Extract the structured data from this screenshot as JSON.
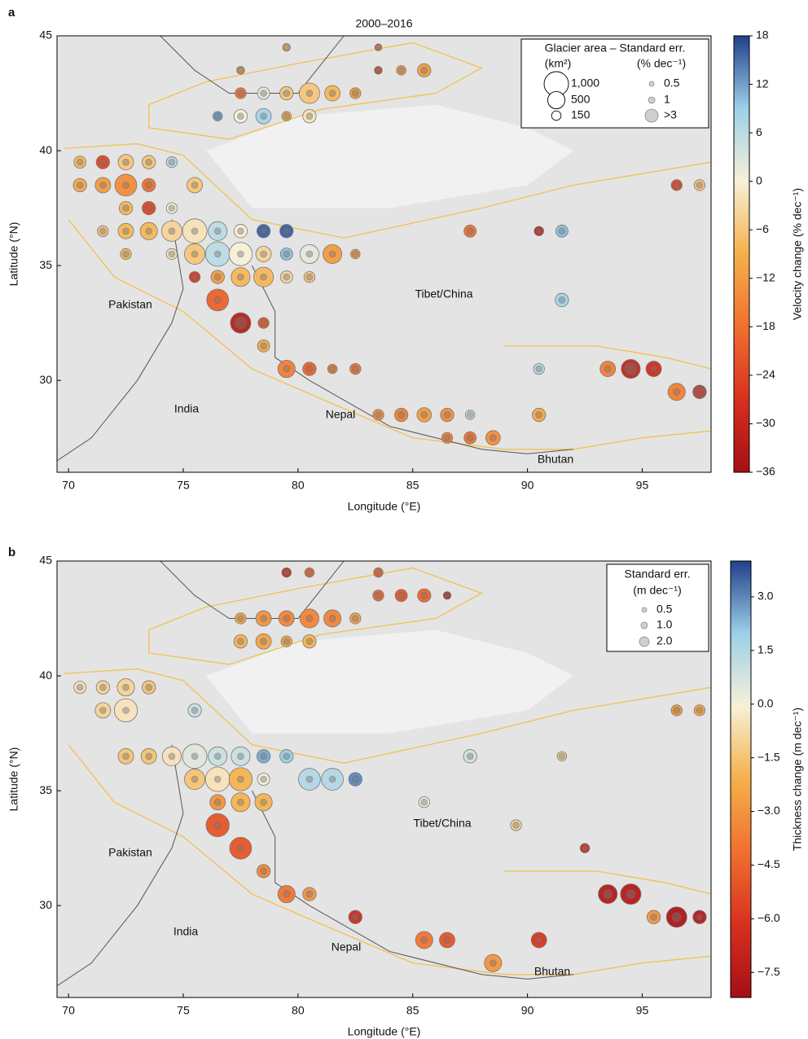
{
  "chart_data": [
    {
      "type": "bubble-map",
      "panel": "a",
      "title": "2000–2016",
      "xlabel": "Longitude (°E)",
      "ylabel": "Latitude (°N)",
      "xlim": [
        69.5,
        98
      ],
      "ylim": [
        26,
        45
      ],
      "xticks": [
        70,
        75,
        80,
        85,
        90,
        95
      ],
      "yticks": [
        30,
        35,
        40,
        45
      ],
      "annotations": [
        "Pakistan",
        "India",
        "Nepal",
        "Tibet/China",
        "Bhutan"
      ],
      "colormap": [
        "#a50f15",
        "#d7301f",
        "#f0702f",
        "#f5b04a",
        "#f7f0d8",
        "#9dd0e8",
        "#21408a"
      ],
      "colorbar": {
        "label": "Velocity change (% dec⁻¹)",
        "lim": [
          -36,
          18
        ],
        "ticks": [
          18,
          12,
          6,
          0,
          {
            "value": -6,
            "label": "−6"
          },
          {
            "value": -12,
            "label": "−12"
          },
          {
            "value": -18,
            "label": "−18"
          },
          {
            "value": -24,
            "label": "−24"
          },
          {
            "value": -30,
            "label": "−30"
          },
          {
            "value": -36,
            "label": "−36"
          }
        ]
      },
      "legend": {
        "title": "Glacier area – Standard err.",
        "size_unit": "(km²)",
        "error_unit": "(% dec⁻¹)",
        "sizes": [
          {
            "value": 1000,
            "label": "1,000"
          },
          500,
          150
        ],
        "errors": [
          0.5,
          1,
          {
            "value": 3,
            "label": ">3"
          }
        ]
      },
      "series": [
        {
          "x": [
            77.5,
            79.5,
            83.5,
            83.5,
            84.5,
            85.5,
            77.5,
            78.5,
            79.5,
            80.5,
            81.5,
            82.5,
            76.5,
            77.5,
            78.5,
            79.5,
            80.5,
            70.5,
            71.5,
            72.5,
            73.5,
            74.5,
            70.5,
            71.5,
            72.5,
            73.5,
            75.5,
            72.5,
            73.5,
            74.5,
            71.5,
            72.5,
            73.5,
            74.5,
            75.5,
            76.5,
            77.5,
            78.5,
            79.5,
            72.5,
            74.5,
            75.5,
            76.5,
            77.5,
            78.5,
            79.5,
            80.5,
            81.5,
            82.5,
            75.5,
            76.5,
            77.5,
            78.5,
            79.5,
            80.5,
            76.5,
            77.5,
            78.5,
            78.5,
            79.5,
            80.5,
            81.5,
            82.5,
            83.5,
            84.5,
            85.5,
            86.5,
            87.5,
            90.5,
            86.5,
            87.5,
            88.5,
            87.5,
            90.5,
            91.5,
            91.5,
            90.5,
            93.5,
            94.5,
            95.5,
            96.5,
            97.5,
            96.5,
            97.5
          ],
          "y": [
            43.5,
            44.5,
            44.5,
            43.5,
            43.5,
            43.5,
            42.5,
            42.5,
            42.5,
            42.5,
            42.5,
            42.5,
            41.5,
            41.5,
            41.5,
            41.5,
            41.5,
            39.5,
            39.5,
            39.5,
            39.5,
            39.5,
            38.5,
            38.5,
            38.5,
            38.5,
            38.5,
            37.5,
            37.5,
            37.5,
            36.5,
            36.5,
            36.5,
            36.5,
            36.5,
            36.5,
            36.5,
            36.5,
            36.5,
            35.5,
            35.5,
            35.5,
            35.5,
            35.5,
            35.5,
            35.5,
            35.5,
            35.5,
            35.5,
            34.5,
            34.5,
            34.5,
            34.5,
            34.5,
            34.5,
            33.5,
            32.5,
            32.5,
            31.5,
            30.5,
            30.5,
            30.5,
            30.5,
            28.5,
            28.5,
            28.5,
            28.5,
            28.5,
            28.5,
            27.5,
            27.5,
            27.5,
            36.5,
            36.5,
            36.5,
            33.5,
            30.5,
            30.5,
            30.5,
            30.5,
            29.5,
            29.5,
            38.5,
            38.5
          ],
          "values": [
            -12,
            -8,
            -18,
            -24,
            -12,
            -12,
            -18,
            2,
            -6,
            -6,
            -8,
            -12,
            12,
            0,
            8,
            -10,
            -2,
            -8,
            -24,
            -6,
            -6,
            6,
            -10,
            -12,
            -14,
            -18,
            -6,
            -8,
            -24,
            0,
            -6,
            -8,
            -8,
            -4,
            -2,
            6,
            0,
            16,
            16,
            -8,
            -2,
            -6,
            6,
            0,
            -4,
            10,
            2,
            -12,
            -12,
            -26,
            -12,
            -8,
            -8,
            -4,
            -6,
            -20,
            -32,
            -22,
            -10,
            -16,
            -20,
            -16,
            -18,
            -14,
            -16,
            -12,
            -14,
            4,
            -10,
            -16,
            -18,
            -14,
            -18,
            -30,
            10,
            8,
            6,
            -16,
            -30,
            -28,
            -16,
            -28,
            -24,
            -6
          ],
          "sizes": [
            100,
            100,
            80,
            100,
            150,
            300,
            200,
            250,
            300,
            700,
            400,
            200,
            150,
            300,
            400,
            150,
            300,
            250,
            300,
            400,
            300,
            200,
            300,
            400,
            800,
            300,
            400,
            300,
            300,
            200,
            200,
            400,
            500,
            700,
            1000,
            600,
            300,
            300,
            300,
            200,
            200,
            700,
            1000,
            900,
            400,
            250,
            600,
            600,
            150,
            200,
            300,
            600,
            650,
            250,
            200,
            800,
            700,
            200,
            250,
            500,
            300,
            150,
            200,
            200,
            300,
            350,
            300,
            150,
            300,
            200,
            250,
            350,
            250,
            150,
            250,
            300,
            200,
            400,
            600,
            400,
            500,
            300,
            200,
            200
          ],
          "errors": [
            1,
            1,
            1,
            1,
            1,
            1,
            1,
            1,
            1,
            1,
            1,
            1,
            1,
            1,
            1,
            1,
            1,
            1,
            1,
            1,
            1,
            1,
            1,
            1,
            1,
            1,
            1,
            1,
            1,
            1,
            1,
            1,
            1,
            1,
            1,
            1,
            1,
            1,
            1,
            1,
            1,
            1,
            1,
            1,
            1,
            1,
            1,
            1,
            1,
            1,
            1,
            1,
            1,
            1,
            1,
            1,
            3,
            1,
            1,
            1,
            1,
            1,
            1,
            1,
            1,
            1,
            1,
            1,
            1,
            1,
            1,
            1,
            1,
            1,
            1,
            1,
            1,
            1,
            3,
            1,
            1,
            3,
            1,
            1
          ]
        }
      ]
    },
    {
      "type": "bubble-map",
      "panel": "b",
      "xlabel": "Longitude (°E)",
      "ylabel": "Latitude (°N)",
      "xlim": [
        69.5,
        98
      ],
      "ylim": [
        26,
        45
      ],
      "xticks": [
        70,
        75,
        80,
        85,
        90,
        95
      ],
      "yticks": [
        30,
        35,
        40,
        45
      ],
      "annotations": [
        "Pakistan",
        "India",
        "Nepal",
        "Tibet/China",
        "Bhutan"
      ],
      "colormap": [
        "#a50f15",
        "#d7301f",
        "#f0702f",
        "#f5b04a",
        "#f7f0d8",
        "#9dd0e8",
        "#21408a"
      ],
      "colorbar": {
        "label": "Thickness change (m dec⁻¹)",
        "lim": [
          -8.2,
          4.0
        ],
        "ticks": [
          {
            "value": 3,
            "label": "3.0"
          },
          1.5,
          {
            "value": 0,
            "label": "0.0"
          },
          {
            "value": -1.5,
            "label": "−1.5"
          },
          {
            "value": -3,
            "label": "−3.0"
          },
          {
            "value": -4.5,
            "label": "−4.5"
          },
          {
            "value": -6,
            "label": "−6.0"
          },
          {
            "value": -7.5,
            "label": "−7.5"
          }
        ]
      },
      "legend": {
        "title": "Standard err.",
        "error_unit": "(m dec⁻¹)",
        "errors": [
          0.5,
          {
            "value": 1,
            "label": "1.0"
          },
          {
            "value": 2,
            "label": "2.0"
          }
        ]
      },
      "series": [
        {
          "x": [
            79.5,
            80.5,
            83.5,
            83.5,
            84.5,
            85.5,
            86.5,
            77.5,
            78.5,
            79.5,
            80.5,
            81.5,
            82.5,
            77.5,
            78.5,
            79.5,
            80.5,
            70.5,
            71.5,
            72.5,
            73.5,
            71.5,
            72.5,
            75.5,
            72.5,
            73.5,
            74.5,
            75.5,
            76.5,
            77.5,
            78.5,
            79.5,
            75.5,
            76.5,
            77.5,
            78.5,
            80.5,
            81.5,
            82.5,
            76.5,
            77.5,
            78.5,
            76.5,
            77.5,
            78.5,
            79.5,
            80.5,
            82.5,
            85.5,
            86.5,
            88.5,
            90.5,
            85.5,
            87.5,
            91.5,
            89.5,
            92.5,
            93.5,
            94.5,
            95.5,
            96.5,
            97.5,
            96.5,
            97.5
          ],
          "y": [
            44.5,
            44.5,
            44.5,
            43.5,
            43.5,
            43.5,
            43.5,
            42.5,
            42.5,
            42.5,
            42.5,
            42.5,
            42.5,
            41.5,
            41.5,
            41.5,
            41.5,
            39.5,
            39.5,
            39.5,
            39.5,
            38.5,
            38.5,
            38.5,
            36.5,
            36.5,
            36.5,
            36.5,
            36.5,
            36.5,
            36.5,
            36.5,
            35.5,
            35.5,
            35.5,
            35.5,
            35.5,
            35.5,
            35.5,
            34.5,
            34.5,
            34.5,
            33.5,
            32.5,
            31.5,
            30.5,
            30.5,
            29.5,
            28.5,
            28.5,
            27.5,
            28.5,
            34.5,
            36.5,
            36.5,
            33.5,
            32.5,
            30.5,
            30.5,
            29.5,
            29.5,
            29.5,
            38.5,
            38.5
          ],
          "values": [
            -6.5,
            -4.5,
            -4.5,
            -4.5,
            -5,
            -4.5,
            -7,
            -2.5,
            -3,
            -3.5,
            -3.5,
            -3.5,
            -2.5,
            -2,
            -2.5,
            -2.5,
            -2,
            -0.5,
            -1,
            -1,
            -1.5,
            -1,
            -0.5,
            1,
            -1.5,
            -1.5,
            -0.5,
            0.5,
            1,
            1,
            2.5,
            2,
            -1.5,
            -0.5,
            -2,
            0,
            1.5,
            1.5,
            3,
            -3,
            -2,
            -2,
            -5,
            -5,
            -3.5,
            -4,
            -3,
            -6.5,
            -4,
            -5,
            -3,
            -6,
            0.2,
            0.8,
            -1,
            -1,
            -6.5,
            -7.5,
            -7.5,
            -3,
            -7.8,
            -7.5,
            -3,
            -2.5
          ],
          "sizes": [
            150,
            150,
            150,
            200,
            250,
            300,
            100,
            200,
            400,
            400,
            600,
            500,
            200,
            300,
            400,
            200,
            300,
            250,
            300,
            500,
            300,
            400,
            900,
            300,
            400,
            400,
            600,
            1000,
            600,
            600,
            300,
            300,
            700,
            1000,
            900,
            250,
            800,
            800,
            300,
            400,
            600,
            500,
            900,
            800,
            300,
            500,
            300,
            300,
            500,
            400,
            500,
            400,
            200,
            300,
            150,
            200,
            150,
            600,
            700,
            300,
            700,
            300,
            200,
            200
          ],
          "errors": [
            1,
            1,
            1,
            1,
            1,
            1,
            1,
            1,
            1,
            1,
            1,
            1,
            1,
            1,
            1,
            1,
            1,
            1,
            1,
            1,
            1,
            1,
            1,
            1,
            1,
            1,
            1,
            1,
            1,
            1,
            1,
            1,
            1,
            1,
            1,
            1,
            1,
            1,
            1,
            1,
            1,
            1,
            1,
            1,
            1,
            1,
            1,
            1,
            1,
            1,
            1,
            1,
            1,
            1,
            1,
            1,
            1,
            2,
            2,
            1,
            2,
            1,
            1,
            1
          ]
        }
      ]
    }
  ]
}
